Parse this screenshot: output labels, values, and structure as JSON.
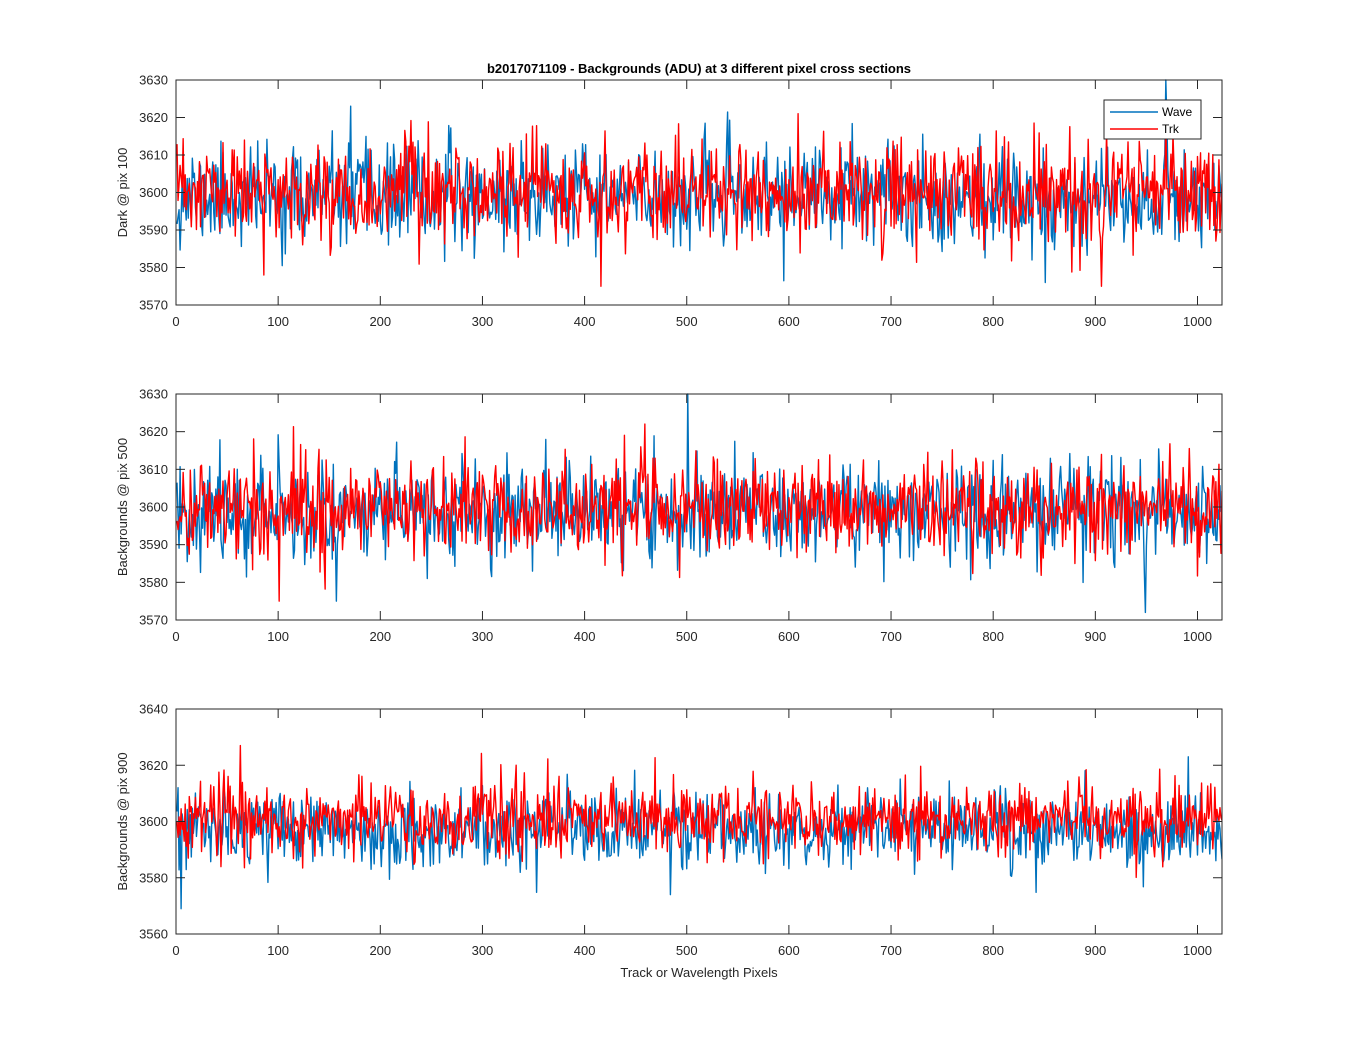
{
  "figure": {
    "title": "b2017071109 - Backgrounds (ADU) at 3 different pixel cross sections",
    "xlabel": "Track or Wavelength Pixels"
  },
  "legend": {
    "entries": [
      {
        "name": "Wave",
        "color": "#0072BD"
      },
      {
        "name": "Trk",
        "color": "#FF0000"
      }
    ],
    "location": "top-right of first panel"
  },
  "chart_data": [
    {
      "type": "line",
      "title": "b2017071109 - Backgrounds (ADU) at 3 different pixel cross sections",
      "xlabel": "",
      "ylabel": "Dark @ pix 100",
      "xlim": [
        0,
        1024
      ],
      "ylim": [
        3570,
        3630
      ],
      "xticks": [
        0,
        100,
        200,
        300,
        400,
        500,
        600,
        700,
        800,
        900,
        1000
      ],
      "yticks": [
        3570,
        3580,
        3590,
        3600,
        3610,
        3620,
        3630
      ],
      "n_points": 1024,
      "series": [
        {
          "name": "Wave",
          "color": "#0072BD",
          "mean": 3599,
          "std": 6.5,
          "min": 3576,
          "max": 3630,
          "seed": 11,
          "spikes": [
            [
              170,
              3623
            ],
            [
              968,
              3630
            ],
            [
              850,
              3576
            ]
          ]
        },
        {
          "name": "Trk",
          "color": "#FF0000",
          "mean": 3600,
          "std": 6.5,
          "min": 3575,
          "max": 3621,
          "seed": 23,
          "spikes": [
            [
              608,
              3621
            ],
            [
              415,
              3575
            ],
            [
              905,
              3575
            ],
            [
              85,
              3578
            ]
          ]
        }
      ],
      "legend": true
    },
    {
      "type": "line",
      "title": "",
      "xlabel": "",
      "ylabel": "Backgrounds @ pix 500",
      "xlim": [
        0,
        1024
      ],
      "ylim": [
        3570,
        3630
      ],
      "xticks": [
        0,
        100,
        200,
        300,
        400,
        500,
        600,
        700,
        800,
        900,
        1000
      ],
      "yticks": [
        3570,
        3580,
        3590,
        3600,
        3610,
        3620,
        3630
      ],
      "n_points": 1024,
      "series": [
        {
          "name": "Wave",
          "color": "#0072BD",
          "mean": 3599,
          "std": 6.5,
          "min": 3572,
          "max": 3630,
          "seed": 37,
          "spikes": [
            [
              500,
              3630
            ],
            [
              948,
              3572
            ],
            [
              156,
              3575
            ]
          ]
        },
        {
          "name": "Trk",
          "color": "#FF0000",
          "mean": 3600,
          "std": 6.5,
          "min": 3575,
          "max": 3622,
          "seed": 41,
          "spikes": [
            [
              100,
              3575
            ],
            [
              458,
              3622
            ]
          ]
        }
      ],
      "legend": false
    },
    {
      "type": "line",
      "title": "",
      "xlabel": "Track or Wavelength Pixels",
      "ylabel": "Backgrounds @ pix 900",
      "xlim": [
        0,
        1024
      ],
      "ylim": [
        3560,
        3640
      ],
      "xticks": [
        0,
        100,
        200,
        300,
        400,
        500,
        600,
        700,
        800,
        900,
        1000
      ],
      "yticks": [
        3560,
        3580,
        3600,
        3620,
        3640
      ],
      "n_points": 1024,
      "series": [
        {
          "name": "Wave",
          "color": "#0072BD",
          "mean": 3597,
          "std": 6.5,
          "min": 3569,
          "max": 3623,
          "seed": 53,
          "spikes": [
            [
              4,
              3569
            ],
            [
              990,
              3623
            ],
            [
              483,
              3574
            ]
          ]
        },
        {
          "name": "Trk",
          "color": "#FF0000",
          "mean": 3601,
          "std": 6.5,
          "min": 3580,
          "max": 3627,
          "seed": 67,
          "spikes": [
            [
              62,
              3627
            ],
            [
              332,
              3620
            ]
          ]
        }
      ],
      "legend": false
    }
  ]
}
